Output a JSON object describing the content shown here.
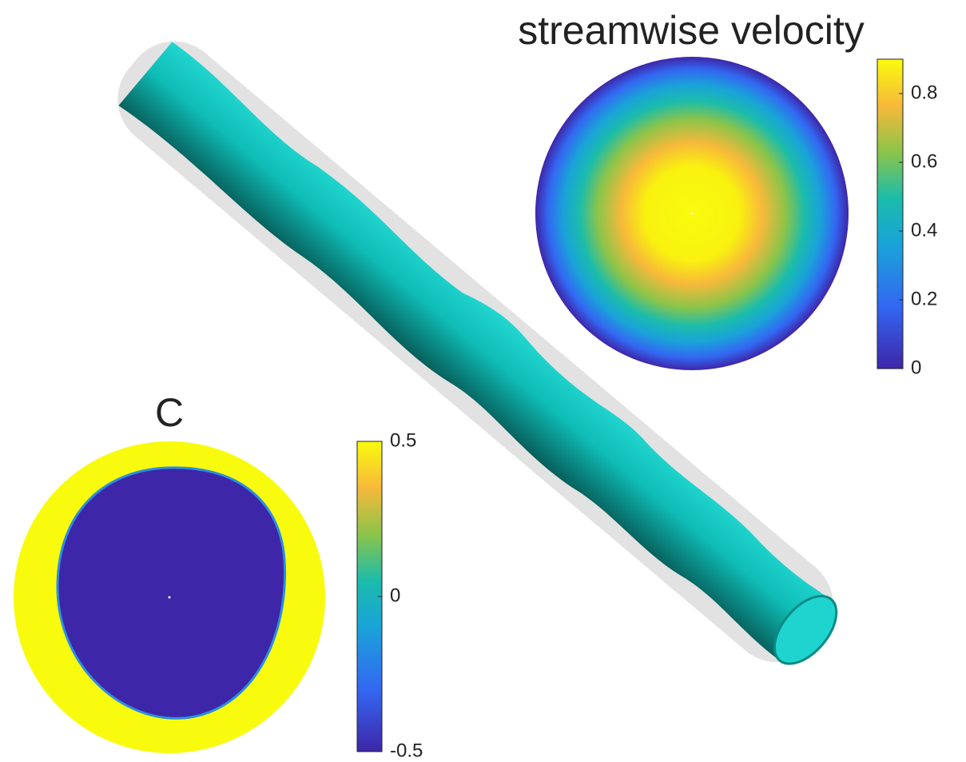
{
  "velocity_panel": {
    "title": "streamwise velocity",
    "colorbar": {
      "lim": [
        0,
        0.9
      ],
      "ticks": [
        0,
        0.2,
        0.4,
        0.6,
        0.8
      ]
    }
  },
  "c_panel": {
    "title": "C",
    "colorbar": {
      "lim": [
        -0.5,
        0.5
      ],
      "ticks": [
        -0.5,
        0,
        0.5
      ]
    }
  }
}
